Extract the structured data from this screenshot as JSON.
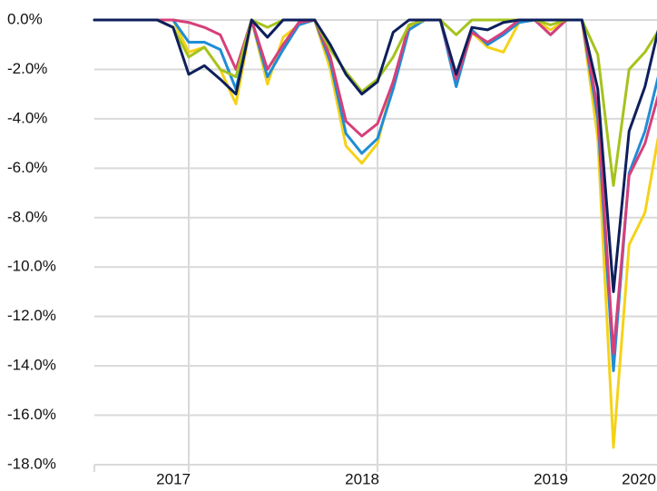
{
  "chart_data": {
    "type": "line",
    "x": [
      2016.5,
      2016.583,
      2016.667,
      2016.75,
      2016.833,
      2016.917,
      2017.0,
      2017.083,
      2017.167,
      2017.25,
      2017.333,
      2017.417,
      2017.5,
      2017.583,
      2017.667,
      2017.75,
      2017.833,
      2017.917,
      2018.0,
      2018.083,
      2018.167,
      2018.25,
      2018.333,
      2018.417,
      2018.5,
      2018.583,
      2018.667,
      2018.75,
      2018.833,
      2018.917,
      2019.0,
      2019.083,
      2019.167,
      2019.25,
      2019.333,
      2019.417,
      2019.5
    ],
    "xlim": [
      2016.5,
      2019.5
    ],
    "xticks": [
      2017,
      2018,
      2019,
      2020
    ],
    "ylim": [
      -18,
      0
    ],
    "yticks": [
      {
        "value": 0,
        "label": "0.0%"
      },
      {
        "value": -2,
        "label": "-2.0%"
      },
      {
        "value": -4,
        "label": "-4.0%"
      },
      {
        "value": -6,
        "label": "-6.0%"
      },
      {
        "value": -8,
        "label": "-8.0%"
      },
      {
        "value": -10,
        "label": "-10.0%"
      },
      {
        "value": -12,
        "label": "-12.0%"
      },
      {
        "value": -14,
        "label": "-14.0%"
      },
      {
        "value": -16,
        "label": "-16.0%"
      },
      {
        "value": -18,
        "label": "-18.0%"
      }
    ],
    "grid": true,
    "series": [
      {
        "color": "#f5d218",
        "values": [
          0,
          0,
          0,
          0,
          0,
          0,
          -1.3,
          -1.1,
          -2.0,
          -3.4,
          0,
          -2.6,
          -0.7,
          -0.2,
          0,
          -2.0,
          -5.1,
          -5.8,
          -5.0,
          -2.5,
          -0.3,
          0,
          0,
          -2.6,
          -0.5,
          -1.1,
          -1.3,
          -0.1,
          0,
          -0.4,
          0,
          0,
          -4.8,
          -17.3,
          -9.1,
          -7.8,
          -4.2
        ]
      },
      {
        "color": "#1f8dd6",
        "values": [
          0,
          0,
          0,
          0,
          0,
          0,
          -0.9,
          -0.9,
          -1.2,
          -2.8,
          0,
          -2.3,
          -1.2,
          -0.2,
          0,
          -1.7,
          -4.6,
          -5.4,
          -4.8,
          -2.8,
          -0.4,
          0,
          0,
          -2.7,
          -0.4,
          -1.0,
          -0.6,
          -0.1,
          0,
          -0.6,
          0,
          0,
          -4.0,
          -14.2,
          -6.2,
          -4.5,
          -1.9
        ]
      },
      {
        "color": "#d6407a",
        "values": [
          0,
          0,
          0,
          0,
          0,
          0,
          -0.1,
          -0.3,
          -0.6,
          -2.0,
          0,
          -2.0,
          -1.0,
          -0.1,
          0,
          -1.5,
          -4.1,
          -4.7,
          -4.2,
          -2.5,
          -0.2,
          0,
          0,
          -2.4,
          -0.5,
          -0.9,
          -0.5,
          0,
          0,
          -0.6,
          0,
          0,
          -3.6,
          -13.5,
          -6.3,
          -5.0,
          -2.7
        ]
      },
      {
        "color": "#a5c31d",
        "values": [
          0,
          0,
          0,
          0,
          0,
          -0.3,
          -1.5,
          -1.1,
          -2.0,
          -2.3,
          0,
          -0.3,
          0,
          0,
          0,
          -1.2,
          -2.1,
          -2.9,
          -2.4,
          -1.5,
          -0.2,
          0,
          0,
          -0.6,
          0,
          0,
          0,
          0,
          0,
          -0.2,
          0,
          0,
          -1.4,
          -6.7,
          -2.0,
          -1.3,
          -0.3
        ]
      },
      {
        "color": "#0d1f5c",
        "values": [
          0,
          0,
          0,
          0,
          0,
          -0.3,
          -2.2,
          -1.85,
          -2.4,
          -3.0,
          0,
          -0.7,
          0,
          0,
          0,
          -1.0,
          -2.2,
          -3.0,
          -2.5,
          -0.5,
          0,
          0,
          0,
          -2.2,
          -0.3,
          -0.4,
          -0.1,
          0,
          0,
          0,
          0,
          0,
          -2.8,
          -11.0,
          -4.5,
          -2.7,
          0
        ]
      }
    ]
  }
}
